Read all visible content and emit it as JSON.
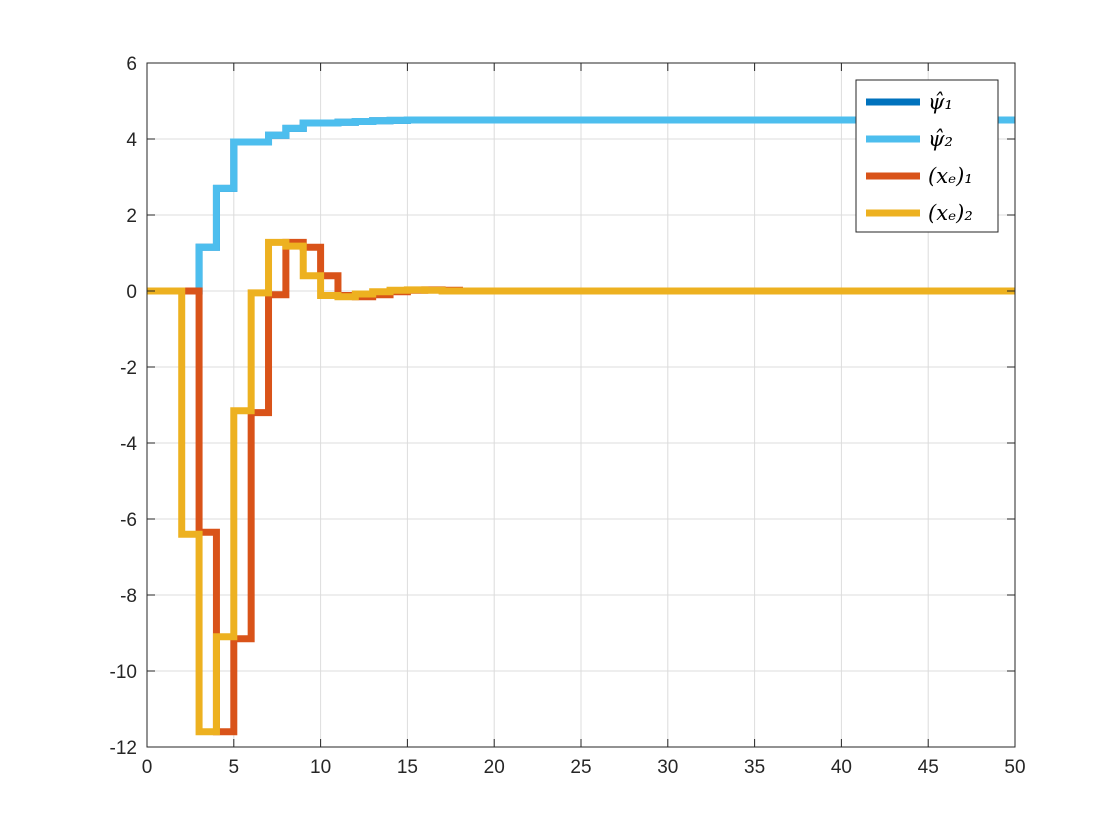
{
  "chart_data": {
    "type": "line",
    "step": true,
    "xlim": [
      0,
      50
    ],
    "ylim": [
      -12,
      6
    ],
    "xticks": [
      0,
      5,
      10,
      15,
      20,
      25,
      30,
      35,
      40,
      45,
      50
    ],
    "yticks": [
      -12,
      -10,
      -8,
      -6,
      -4,
      -2,
      0,
      2,
      4,
      6
    ],
    "grid": true,
    "legend_position": "top-right",
    "series": [
      {
        "name": "ψ̂₁",
        "color": "#0072BD",
        "x": [
          0,
          1,
          2,
          3,
          4,
          5,
          6,
          7,
          8,
          9,
          10,
          11,
          12,
          13,
          14,
          15,
          16,
          17,
          18,
          20,
          50
        ],
        "y": [
          0,
          0,
          0,
          1.15,
          2.7,
          3.92,
          3.92,
          4.1,
          4.28,
          4.42,
          4.42,
          4.44,
          4.46,
          4.48,
          4.49,
          4.5,
          4.5,
          4.5,
          4.5,
          4.5,
          4.5
        ]
      },
      {
        "name": "ψ̂₂",
        "color": "#4DBEEE",
        "x": [
          0,
          1,
          2,
          3,
          4,
          5,
          6,
          7,
          8,
          9,
          10,
          11,
          12,
          13,
          14,
          15,
          16,
          17,
          18,
          20,
          50
        ],
        "y": [
          0,
          0,
          0,
          1.15,
          2.7,
          3.92,
          3.92,
          4.1,
          4.28,
          4.42,
          4.42,
          4.44,
          4.46,
          4.48,
          4.49,
          4.5,
          4.5,
          4.5,
          4.5,
          4.5,
          4.5
        ]
      },
      {
        "name": "(xₑ)₁",
        "color": "#D95319",
        "x": [
          0,
          1,
          2,
          3,
          4,
          5,
          6,
          7,
          8,
          9,
          10,
          11,
          12,
          13,
          14,
          15,
          16,
          17,
          18,
          50
        ],
        "y": [
          0,
          0,
          0,
          -6.35,
          -11.6,
          -9.15,
          -3.2,
          -0.1,
          1.28,
          1.15,
          0.4,
          -0.12,
          -0.15,
          -0.1,
          -0.02,
          0.02,
          0.03,
          0.02,
          0,
          0
        ]
      },
      {
        "name": "(xₑ)₂",
        "color": "#EDB120",
        "x": [
          0,
          1,
          2,
          3,
          4,
          5,
          6,
          7,
          8,
          9,
          10,
          11,
          12,
          13,
          14,
          15,
          16,
          17,
          18,
          50
        ],
        "y": [
          0,
          0,
          -6.4,
          -11.6,
          -9.1,
          -3.15,
          -0.05,
          1.28,
          1.18,
          0.4,
          -0.12,
          -0.15,
          -0.08,
          -0.02,
          0.02,
          0.03,
          0.02,
          0,
          0,
          0
        ]
      }
    ]
  }
}
